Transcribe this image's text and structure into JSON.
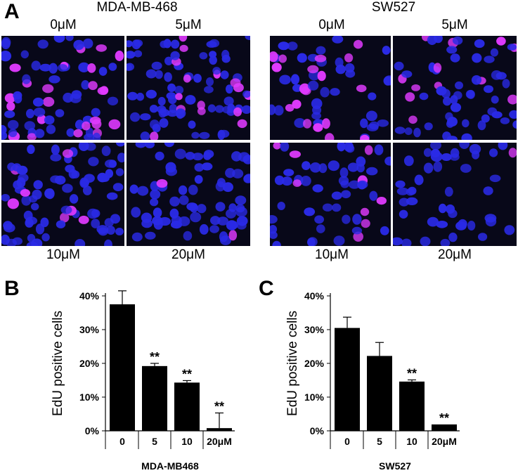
{
  "panels": {
    "a": {
      "letter": "A",
      "cell_lines": [
        {
          "name": "MDA-MB-468",
          "conc_top": [
            "0μM",
            "5μM"
          ],
          "conc_bottom": [
            "10μM",
            "20μM"
          ]
        },
        {
          "name": "SW527",
          "conc_top": [
            "0μM",
            "5μM"
          ],
          "conc_bottom": [
            "10μM",
            "20μM"
          ]
        }
      ]
    },
    "b": {
      "letter": "B"
    },
    "c": {
      "letter": "C"
    }
  },
  "colors": {
    "nucleus_blue": "#2a2ae6",
    "edu_magenta": "#e03aff",
    "background": "#080819",
    "bar": "#000000"
  },
  "chart_data": [
    {
      "type": "bar",
      "title": "",
      "xlabel": "MDA-MB468",
      "ylabel": "EdU positive cells",
      "categories": [
        "0",
        "5",
        "10",
        "20μM"
      ],
      "values": [
        0.375,
        0.192,
        0.143,
        0.008
      ],
      "error": [
        0.04,
        0.008,
        0.006,
        0.045
      ],
      "significance": [
        "",
        "**",
        "**",
        "**"
      ],
      "ylim": [
        0,
        0.4
      ],
      "yticks": [
        "0%",
        "10%",
        "20%",
        "30%",
        "40%"
      ]
    },
    {
      "type": "bar",
      "title": "",
      "xlabel": "SW527",
      "ylabel": "EdU positive cells",
      "categories": [
        "0",
        "5",
        "10",
        "20μM"
      ],
      "values": [
        0.305,
        0.222,
        0.146,
        0.019
      ],
      "error": [
        0.032,
        0.04,
        0.005,
        0.0
      ],
      "significance": [
        "",
        "",
        "**",
        "**"
      ],
      "ylim": [
        0,
        0.4
      ],
      "yticks": [
        "0%",
        "10%",
        "20%",
        "30%",
        "40%"
      ]
    }
  ]
}
